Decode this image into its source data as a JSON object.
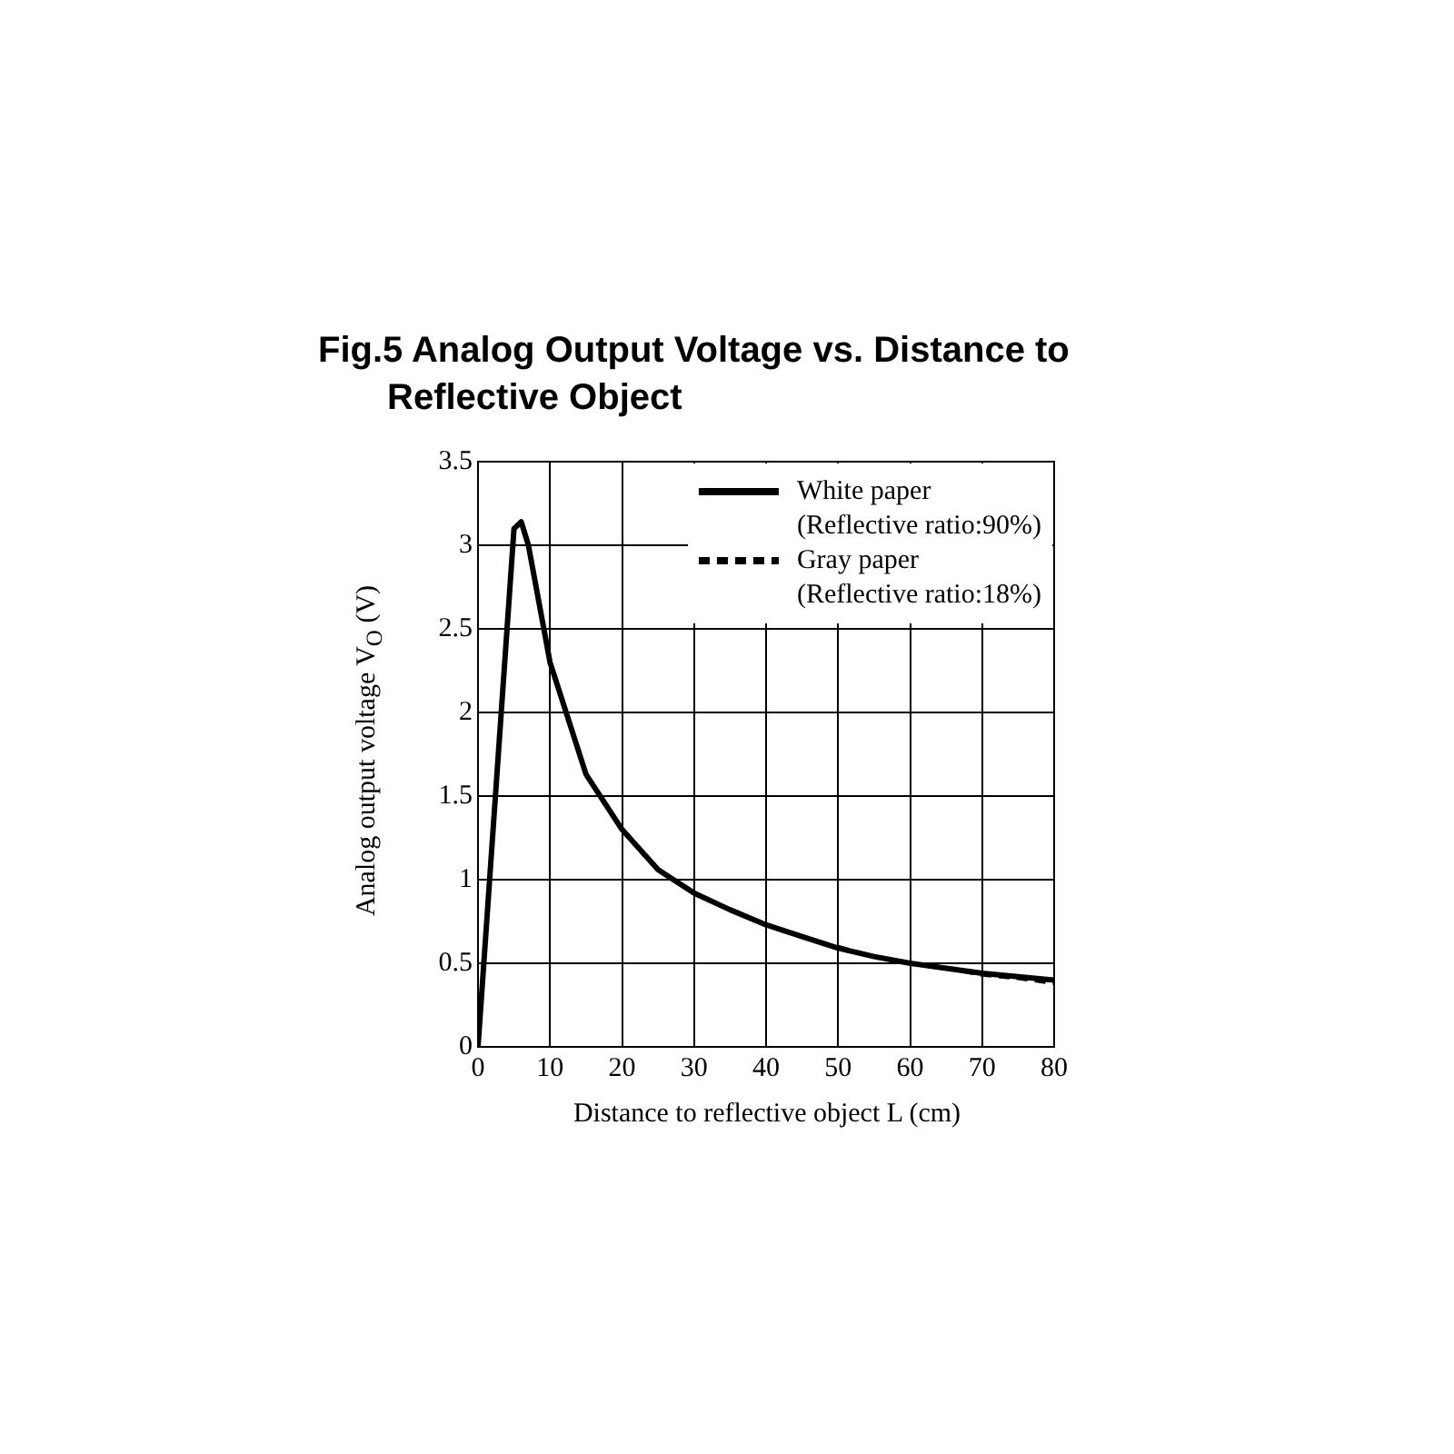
{
  "chart_data": {
    "type": "line",
    "title": "Fig.5 Analog Output Voltage vs. Distance to Reflective Object",
    "xlabel": "Distance to reflective object L (cm)",
    "ylabel": "Analog output voltage V$_{O}$ (V)",
    "series": [
      {
        "name": "White paper (Reflective ratio:90%)",
        "color": "#000000",
        "line_style": "solid",
        "x": [
          0,
          5,
          6,
          7,
          10,
          15,
          20,
          25,
          30,
          35,
          40,
          45,
          50,
          55,
          60,
          65,
          70,
          75,
          80
        ],
        "values": [
          0,
          3.1,
          3.14,
          3.0,
          2.3,
          1.63,
          1.3,
          1.06,
          0.92,
          0.82,
          0.73,
          0.66,
          0.59,
          0.54,
          0.5,
          0.47,
          0.44,
          0.42,
          0.4
        ]
      },
      {
        "name": "Gray paper (Reflective ratio:18%)",
        "color": "#000000",
        "line_style": "dashed",
        "x": [
          50,
          55,
          60,
          65,
          70,
          75,
          80
        ],
        "values": [
          0.6,
          0.54,
          0.5,
          0.47,
          0.43,
          0.41,
          0.38
        ]
      }
    ],
    "xlim": [
      0,
      80
    ],
    "xticks": [
      0,
      10,
      20,
      30,
      40,
      50,
      60,
      70,
      80
    ],
    "ylim": [
      0,
      3.5
    ],
    "yticks": [
      0,
      0.5,
      1,
      1.5,
      2,
      2.5,
      3,
      3.5
    ],
    "grid": true,
    "legend": "top right",
    "marker": "none"
  }
}
